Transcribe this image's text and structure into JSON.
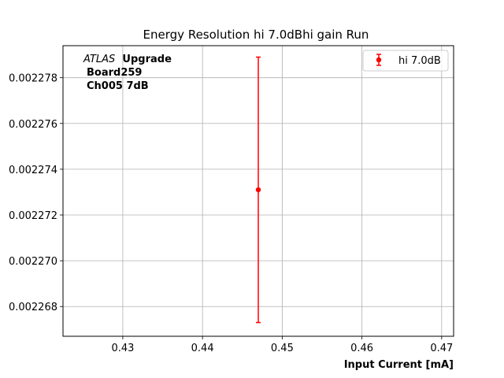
{
  "chart_data": {
    "type": "scatter",
    "title": "Energy Resolution hi 7.0dBhi gain Run",
    "xlabel": "Input Current [mA]",
    "ylabel": "",
    "xlim": [
      0.4225,
      0.4715
    ],
    "ylim": [
      0.0022667,
      0.0022794
    ],
    "xticks": [
      0.43,
      0.44,
      0.45,
      0.46,
      0.47
    ],
    "xtick_labels": [
      "0.43",
      "0.44",
      "0.45",
      "0.46",
      "0.47"
    ],
    "yticks": [
      0.002268,
      0.00227,
      0.002272,
      0.002274,
      0.002276,
      0.002278
    ],
    "ytick_labels": [
      "0.002268",
      "0.002270",
      "0.002272",
      "0.002274",
      "0.002276",
      "0.002278"
    ],
    "grid": true,
    "legend_position": "top-right",
    "series": [
      {
        "name": "hi 7.0dB",
        "color": "#ff0000",
        "marker": "circle",
        "points": [
          {
            "x": 0.447,
            "y": 0.0022731,
            "yerr_low": 0.0022673,
            "yerr_high": 0.0022789
          }
        ]
      }
    ],
    "annotation": {
      "italic_part": "ATLAS",
      "bold_part": "Upgrade",
      "lines": [
        "Board259",
        "Ch005 7dB"
      ]
    }
  }
}
